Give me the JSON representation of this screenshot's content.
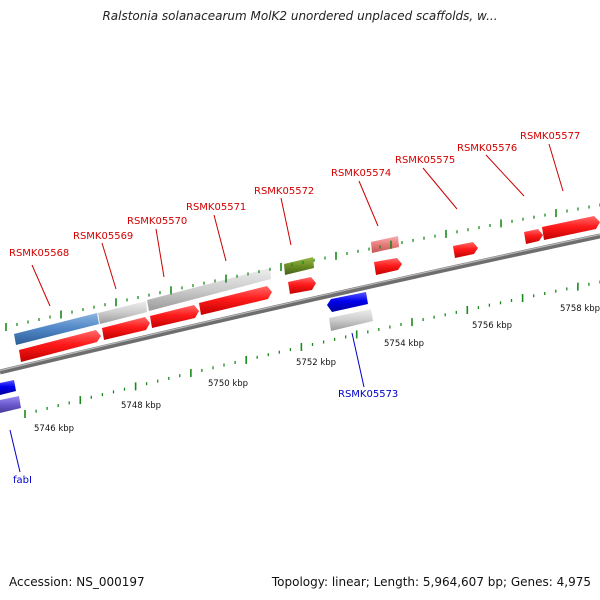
{
  "title": "Ralstonia solanacearum MolK2 unordered unplaced scaffolds, w...",
  "footer": {
    "accession": "Accession: NS_000197",
    "summary": "Topology: linear; Length: 5,964,607 bp; Genes: 4,975"
  },
  "scale": {
    "labels": [
      "5746 kbp",
      "5748 kbp",
      "5750 kbp",
      "5752 kbp",
      "5754 kbp",
      "5756 kbp",
      "5758 kbp"
    ]
  },
  "genes_forward": [
    {
      "label": "RSMK05568",
      "color": "#d40000"
    },
    {
      "label": "RSMK05569",
      "color": "#d40000"
    },
    {
      "label": "RSMK05570",
      "color": "#d40000"
    },
    {
      "label": "RSMK05571",
      "color": "#d40000"
    },
    {
      "label": "RSMK05572",
      "color": "#d40000"
    },
    {
      "label": "RSMK05574",
      "color": "#d40000"
    },
    {
      "label": "RSMK05575",
      "color": "#d40000"
    },
    {
      "label": "RSMK05576",
      "color": "#d40000"
    },
    {
      "label": "RSMK05577",
      "color": "#d40000"
    }
  ],
  "genes_reverse": [
    {
      "label": "RSMK05573",
      "color": "#0000c8"
    },
    {
      "label": "fabI",
      "color": "#0000c8"
    }
  ],
  "colors": {
    "gene_forward": "#ff1a1a",
    "gene_reverse": "#0000ee",
    "feature_blue": "#4f86c6",
    "feature_gray": "#c8c8c8",
    "feature_green": "#6b8e23",
    "feature_pink": "#e87b7b",
    "feature_purple": "#6a5acd",
    "backbone": "#888888",
    "tick": "#1a8a1a"
  }
}
